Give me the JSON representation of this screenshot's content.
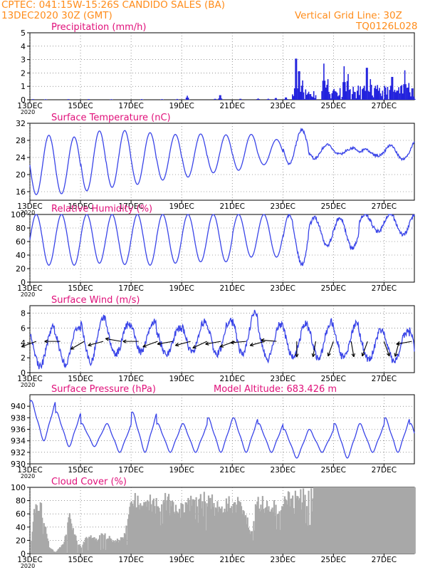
{
  "header": {
    "line1": "CPTEC:   041:15W-15:26S   CANDIDO SALES (BA)",
    "line2": "13DEC2020 30Z (GMT)",
    "grid_note": "Vertical Grid Line: 30Z",
    "code": "TQ0126L028"
  },
  "colors": {
    "header": "#ff8c1a",
    "title": "#e0107a",
    "line": "#3a45e8",
    "bars": "#2222dd",
    "cloud": "#a8a8a8",
    "wind_arrows": "#000000"
  },
  "x_axis": {
    "ticks": [
      "13DEC",
      "15DEC",
      "17DEC",
      "19DEC",
      "21DEC",
      "23DEC",
      "25DEC",
      "27DEC"
    ],
    "tick_days": [
      13,
      15,
      17,
      19,
      21,
      23,
      25,
      27
    ],
    "range_days": [
      13,
      28.2
    ],
    "stub_label": "2020"
  },
  "chart_data": [
    {
      "id": "precip",
      "type": "bar",
      "title": "Precipitation (mm/h)",
      "ylim": [
        0,
        5
      ],
      "yticks": [
        0,
        1,
        2,
        3,
        4,
        5
      ],
      "grid": "dotted",
      "peaks": [
        {
          "day": 13.1,
          "v": 0.05
        },
        {
          "day": 13.6,
          "v": 0.04
        },
        {
          "day": 14.5,
          "v": 0.05
        },
        {
          "day": 15.3,
          "v": 0.05
        },
        {
          "day": 16.2,
          "v": 0.04
        },
        {
          "day": 17.4,
          "v": 0.05
        },
        {
          "day": 18.2,
          "v": 0.05
        },
        {
          "day": 18.8,
          "v": 0.06
        },
        {
          "day": 19.2,
          "v": 0.3
        },
        {
          "day": 20.3,
          "v": 0.08
        },
        {
          "day": 20.5,
          "v": 0.4
        },
        {
          "day": 21.3,
          "v": 0.08
        },
        {
          "day": 22.0,
          "v": 0.1
        },
        {
          "day": 22.4,
          "v": 0.08
        },
        {
          "day": 22.7,
          "v": 0.15
        },
        {
          "day": 23.1,
          "v": 0.2
        },
        {
          "day": 23.5,
          "v": 3.6
        },
        {
          "day": 23.62,
          "v": 2.5
        },
        {
          "day": 23.75,
          "v": 1.5
        },
        {
          "day": 24.0,
          "v": 0.6
        },
        {
          "day": 24.6,
          "v": 2.7
        },
        {
          "day": 24.75,
          "v": 1.6
        },
        {
          "day": 24.95,
          "v": 0.7
        },
        {
          "day": 25.4,
          "v": 2.5
        },
        {
          "day": 25.55,
          "v": 2.0
        },
        {
          "day": 25.8,
          "v": 0.6
        },
        {
          "day": 26.3,
          "v": 2.8
        },
        {
          "day": 26.45,
          "v": 1.6
        },
        {
          "day": 26.75,
          "v": 0.7
        },
        {
          "day": 27.3,
          "v": 2.0
        },
        {
          "day": 27.5,
          "v": 0.8
        },
        {
          "day": 27.8,
          "v": 2.2
        },
        {
          "day": 27.95,
          "v": 1.3
        },
        {
          "day": 28.1,
          "v": 1.0
        }
      ]
    },
    {
      "id": "temp",
      "type": "line",
      "title": "Surface Temperature (nC)",
      "ylim": [
        14,
        32
      ],
      "yticks": [
        16,
        20,
        24,
        28,
        32
      ],
      "grid": "dotted",
      "min_day": [
        15.3,
        15.5,
        16.2,
        17.0,
        17.7,
        18.7,
        19.4,
        20.4,
        21.0,
        22.3,
        22.6,
        23.8,
        24.8,
        25.8,
        26.8,
        27.6
      ],
      "max_day": [
        29.2,
        28.8,
        30.2,
        30.3,
        29.8,
        29.4,
        29.5,
        29.3,
        29.4,
        28.2,
        30.4,
        27.0,
        26.2,
        24.4,
        23.5,
        22.8
      ]
    },
    {
      "id": "rh",
      "type": "line",
      "title": "Relative Humidity (%)",
      "ylim": [
        0,
        100
      ],
      "yticks": [
        0,
        20,
        40,
        60,
        80,
        100
      ],
      "grid": "dotted",
      "max_day": [
        100,
        100,
        100,
        100,
        100,
        100,
        100,
        100,
        100,
        100,
        100,
        95,
        95,
        100,
        100,
        100
      ],
      "min_day": [
        25,
        25,
        28,
        26,
        25,
        28,
        30,
        30,
        37,
        37,
        26,
        55,
        50,
        75,
        70,
        75
      ]
    },
    {
      "id": "wind",
      "type": "line",
      "title": "Surface Wind (m/s)",
      "ylim": [
        0,
        9
      ],
      "yticks": [
        0,
        2,
        4,
        6,
        8
      ],
      "grid": "dotted",
      "max_day": [
        6.0,
        6.0,
        7.5,
        6.5,
        6.8,
        6.0,
        6.8,
        7.0,
        8.0,
        6.5,
        6.5,
        6.8,
        6.5,
        5.8,
        5.5,
        6.8
      ],
      "min_day": [
        0.8,
        1.2,
        1.5,
        2.5,
        2.8,
        2.5,
        2.8,
        2.5,
        2.5,
        1.8,
        2.0,
        2.0,
        2.0,
        1.8,
        1.5,
        1.5
      ],
      "arrows": [
        {
          "day": 13.25,
          "dir": 250
        },
        {
          "day": 14.2,
          "dir": 270
        },
        {
          "day": 15.15,
          "dir": 240
        },
        {
          "day": 15.9,
          "dir": 255
        },
        {
          "day": 16.6,
          "dir": 280
        },
        {
          "day": 17.3,
          "dir": 270
        },
        {
          "day": 18.05,
          "dir": 250
        },
        {
          "day": 18.65,
          "dir": 260
        },
        {
          "day": 19.35,
          "dir": 255
        },
        {
          "day": 20.0,
          "dir": 245
        },
        {
          "day": 20.55,
          "dir": 260
        },
        {
          "day": 21.1,
          "dir": 250
        },
        {
          "day": 21.55,
          "dir": 265
        },
        {
          "day": 22.3,
          "dir": 255
        },
        {
          "day": 22.75,
          "dir": 275
        },
        {
          "day": 23.55,
          "dir": 180
        },
        {
          "day": 24.3,
          "dir": 190
        },
        {
          "day": 25.0,
          "dir": 200
        },
        {
          "day": 25.7,
          "dir": 170
        },
        {
          "day": 26.35,
          "dir": 200
        },
        {
          "day": 27.0,
          "dir": 160
        },
        {
          "day": 27.6,
          "dir": 195
        },
        {
          "day": 28.1,
          "dir": 260
        }
      ]
    },
    {
      "id": "pres",
      "type": "line",
      "title": "Surface Pressure (hPa)",
      "subtitle": "Model Altitude: 683.426 m",
      "ylim": [
        930,
        942
      ],
      "yticks": [
        930,
        932,
        934,
        936,
        938,
        940
      ],
      "grid": "dotted",
      "max_day": [
        941,
        939,
        937,
        937,
        939,
        937,
        937,
        938,
        938,
        937,
        936,
        936,
        937,
        937,
        938,
        937
      ],
      "min_day": [
        934,
        933,
        933,
        932,
        932,
        932,
        932,
        932,
        932,
        932,
        931,
        932,
        931,
        932,
        932,
        931
      ]
    },
    {
      "id": "cloud",
      "type": "area",
      "title": "Cloud Cover (%)",
      "ylim": [
        0,
        100
      ],
      "yticks": [
        0,
        20,
        40,
        60,
        80,
        100
      ],
      "grid": "dotted",
      "profile": [
        {
          "day": 13.0,
          "v": 0
        },
        {
          "day": 13.15,
          "v": 85
        },
        {
          "day": 13.4,
          "v": 90
        },
        {
          "day": 13.55,
          "v": 50
        },
        {
          "day": 13.75,
          "v": 10
        },
        {
          "day": 14.0,
          "v": 2
        },
        {
          "day": 14.3,
          "v": 20
        },
        {
          "day": 14.55,
          "v": 65
        },
        {
          "day": 14.8,
          "v": 25
        },
        {
          "day": 15.0,
          "v": 10
        },
        {
          "day": 15.3,
          "v": 35
        },
        {
          "day": 15.6,
          "v": 25
        },
        {
          "day": 15.9,
          "v": 35
        },
        {
          "day": 16.3,
          "v": 20
        },
        {
          "day": 16.7,
          "v": 30
        },
        {
          "day": 17.05,
          "v": 97
        },
        {
          "day": 17.5,
          "v": 92
        },
        {
          "day": 18.0,
          "v": 88
        },
        {
          "day": 18.4,
          "v": 95
        },
        {
          "day": 18.8,
          "v": 70
        },
        {
          "day": 19.1,
          "v": 85
        },
        {
          "day": 19.6,
          "v": 92
        },
        {
          "day": 20.1,
          "v": 95
        },
        {
          "day": 20.6,
          "v": 85
        },
        {
          "day": 21.1,
          "v": 92
        },
        {
          "day": 21.5,
          "v": 72
        },
        {
          "day": 21.7,
          "v": 30
        },
        {
          "day": 21.9,
          "v": 85
        },
        {
          "day": 22.4,
          "v": 90
        },
        {
          "day": 22.8,
          "v": 75
        },
        {
          "day": 23.2,
          "v": 95
        },
        {
          "day": 23.6,
          "v": 98
        },
        {
          "day": 24.2,
          "v": 100
        },
        {
          "day": 28.2,
          "v": 100
        }
      ]
    }
  ]
}
